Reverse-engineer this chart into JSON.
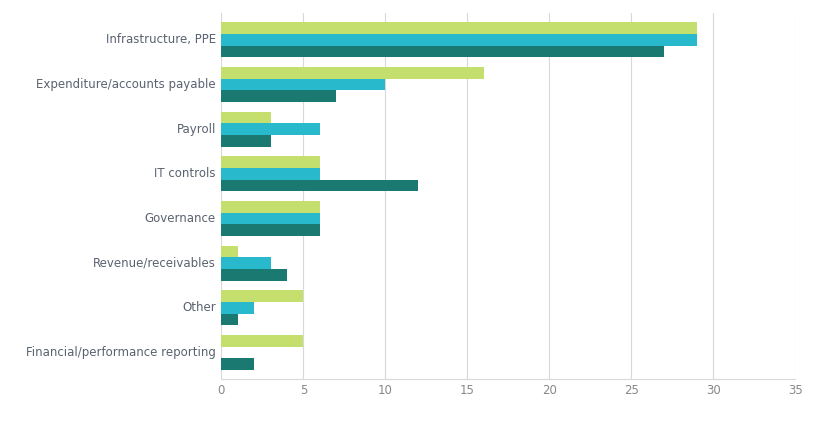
{
  "categories": [
    "Financial/performance reporting",
    "Other",
    "Revenue/receivables",
    "Governance",
    "IT controls",
    "Payroll",
    "Expenditure/accounts payable",
    "Infrastructure, PPE"
  ],
  "series": {
    "30 June 2020": [
      5,
      5,
      1,
      6,
      6,
      3,
      16,
      29
    ],
    "30 June 2019": [
      0,
      2,
      3,
      6,
      6,
      6,
      10,
      29
    ],
    "30 June 2018": [
      2,
      1,
      4,
      6,
      12,
      3,
      7,
      27
    ]
  },
  "colors": {
    "30 June 2020": "#c5df6e",
    "30 June 2019": "#29b9cc",
    "30 June 2018": "#1a7a72"
  },
  "xlim": [
    0,
    35
  ],
  "xticks": [
    0,
    5,
    10,
    15,
    20,
    25,
    30,
    35
  ],
  "bar_height": 0.26,
  "background_color": "#ffffff",
  "grid_color": "#d8d8d8",
  "label_color": "#5a6270",
  "tick_color": "#888888",
  "figsize": [
    8.2,
    4.36
  ],
  "dpi": 100
}
